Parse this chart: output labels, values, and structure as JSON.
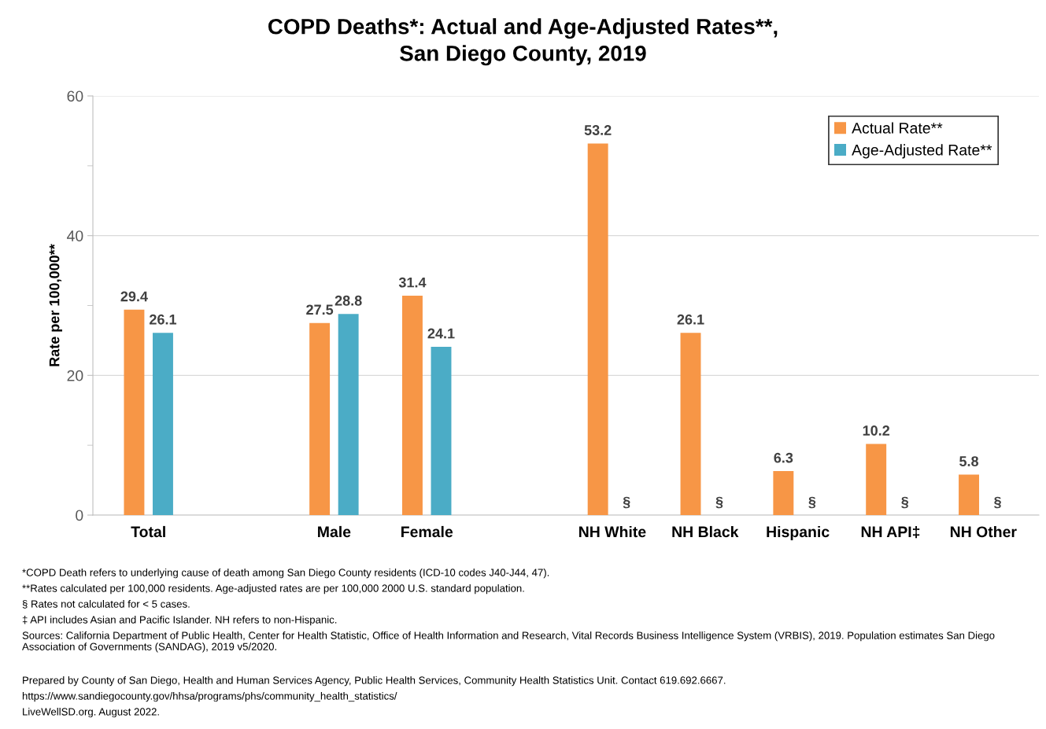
{
  "chart_data": {
    "type": "bar",
    "title": "COPD Deaths*: Actual and Age-Adjusted Rates**,\nSan Diego County, 2019",
    "ylabel": "Rate per 100,000**",
    "categories": [
      "Total",
      null,
      "Male",
      "Female",
      null,
      "NH White",
      "NH Black",
      "Hispanic",
      "NH API‡",
      "NH Other"
    ],
    "series": [
      {
        "name": "Actual Rate**",
        "color": "#f79646",
        "values": [
          29.4,
          null,
          27.5,
          31.4,
          null,
          53.2,
          26.1,
          6.3,
          10.2,
          5.8
        ],
        "value_labels": [
          "29.4",
          null,
          "27.5",
          "31.4",
          null,
          "53.2",
          "26.1",
          "6.3",
          "10.2",
          "5.8"
        ]
      },
      {
        "name": "Age-Adjusted Rate**",
        "color": "#4bacc6",
        "values": [
          26.1,
          null,
          28.8,
          24.1,
          null,
          null,
          null,
          null,
          null,
          null
        ],
        "value_labels": [
          "26.1",
          null,
          "28.8",
          "24.1",
          null,
          "§",
          "§",
          "§",
          "§",
          "§"
        ]
      }
    ],
    "ylim": [
      0,
      60
    ],
    "yticks": [
      0,
      {
        "value": 10,
        "label": null
      },
      20,
      {
        "value": 30,
        "label": null
      },
      40,
      {
        "value": 50,
        "label": null
      },
      60
    ],
    "grid": "y",
    "legend": "top right",
    "annotations": [
      "*COPD Death refers to underlying cause of death among San Diego County residents (ICD-10 codes J40-J44, 47).",
      "**Rates calculated per 100,000 residents. Age-adjusted rates are per 100,000 2000 U.S. standard population.",
      "§ Rates not calculated for < 5 cases.",
      "‡ API includes Asian and Pacific Islander. NH refers to non-Hispanic.",
      "Sources: California Department of Public Health, Center for Health Statistic, Office of Health Information and Research, Vital Records Business Intelligence System (VRBIS), 2019. Population estimates San Diego Association of Governments (SANDAG), 2019 v5/2020.",
      "Prepared by County of San Diego, Health and Human Services Agency, Public Health Services, Community Health Statistics Unit. Contact 619.692.6667.",
      "https://www.sandiegocounty.gov/hhsa/programs/phs/community_health_statistics/",
      "LiveWellSD.org. August 2022."
    ]
  }
}
